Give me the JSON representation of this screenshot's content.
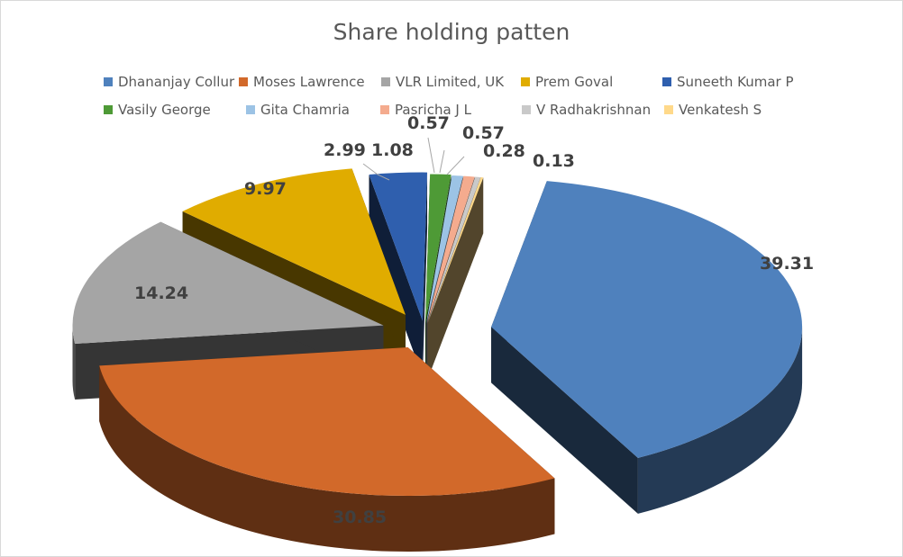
{
  "chart_data": {
    "type": "pie",
    "title": "Share holding patten",
    "style": "3D pie, exploded slices, data labels outside",
    "legend_position": "top",
    "slices": [
      {
        "name": "Dhananjay Collur",
        "value": 39.31,
        "color": "#4f81bd"
      },
      {
        "name": "Moses Lawrence",
        "value": 30.85,
        "color": "#d2692a"
      },
      {
        "name": "VLR Limited, UK",
        "value": 14.24,
        "color": "#a5a5a5"
      },
      {
        "name": "Prem Goval",
        "value": 9.97,
        "color": "#e0ac00"
      },
      {
        "name": "Suneeth Kumar P",
        "value": 2.99,
        "color": "#2f5fae"
      },
      {
        "name": "Vasily George",
        "value": 1.08,
        "color": "#4e9a36"
      },
      {
        "name": "Gita Chamria",
        "value": 0.57,
        "color": "#9cc3e5"
      },
      {
        "name": "Pasricha J L",
        "value": 0.57,
        "color": "#f4ab8e"
      },
      {
        "name": "V Radhakrishnan",
        "value": 0.28,
        "color": "#c9c9c9"
      },
      {
        "name": "Venkatesh S",
        "value": 0.13,
        "color": "#ffd98a"
      }
    ],
    "data_labels": [
      "39.31",
      "30.85",
      "14.24",
      "9.97",
      "2.99",
      "1.08",
      "0.57",
      "0.57",
      "0.28",
      "0.13"
    ]
  }
}
